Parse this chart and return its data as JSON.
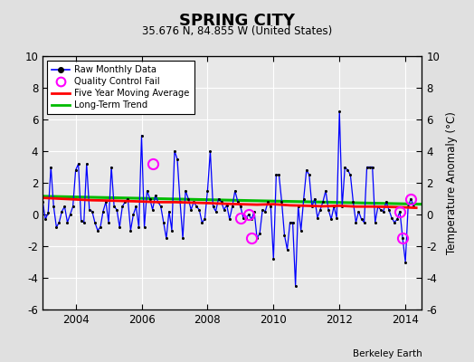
{
  "title": "SPRING CITY",
  "subtitle": "35.676 N, 84.855 W (United States)",
  "ylabel": "Temperature Anomaly (°C)",
  "credit": "Berkeley Earth",
  "xlim": [
    2003.0,
    2014.5
  ],
  "ylim": [
    -6,
    10
  ],
  "yticks": [
    -6,
    -4,
    -2,
    0,
    2,
    4,
    6,
    8,
    10
  ],
  "xticks": [
    2004,
    2006,
    2008,
    2010,
    2012,
    2014
  ],
  "bg_color": "#e0e0e0",
  "plot_bg_color": "#e8e8e8",
  "raw_color": "#0000ff",
  "ma_color": "#ff0000",
  "trend_color": "#00bb00",
  "qc_color": "#ff00ff",
  "raw_data_x": [
    2003.0,
    2003.083,
    2003.167,
    2003.25,
    2003.333,
    2003.417,
    2003.5,
    2003.583,
    2003.667,
    2003.75,
    2003.833,
    2003.917,
    2004.0,
    2004.083,
    2004.167,
    2004.25,
    2004.333,
    2004.417,
    2004.5,
    2004.583,
    2004.667,
    2004.75,
    2004.833,
    2004.917,
    2005.0,
    2005.083,
    2005.167,
    2005.25,
    2005.333,
    2005.417,
    2005.5,
    2005.583,
    2005.667,
    2005.75,
    2005.833,
    2005.917,
    2006.0,
    2006.083,
    2006.167,
    2006.25,
    2006.333,
    2006.417,
    2006.5,
    2006.583,
    2006.667,
    2006.75,
    2006.833,
    2006.917,
    2007.0,
    2007.083,
    2007.167,
    2007.25,
    2007.333,
    2007.417,
    2007.5,
    2007.583,
    2007.667,
    2007.75,
    2007.833,
    2007.917,
    2008.0,
    2008.083,
    2008.167,
    2008.25,
    2008.333,
    2008.417,
    2008.5,
    2008.583,
    2008.667,
    2008.75,
    2008.833,
    2008.917,
    2009.0,
    2009.083,
    2009.167,
    2009.25,
    2009.333,
    2009.417,
    2009.5,
    2009.583,
    2009.667,
    2009.75,
    2009.833,
    2009.917,
    2010.0,
    2010.083,
    2010.167,
    2010.25,
    2010.333,
    2010.417,
    2010.5,
    2010.583,
    2010.667,
    2010.75,
    2010.833,
    2010.917,
    2011.0,
    2011.083,
    2011.167,
    2011.25,
    2011.333,
    2011.417,
    2011.5,
    2011.583,
    2011.667,
    2011.75,
    2011.833,
    2011.917,
    2012.0,
    2012.083,
    2012.167,
    2012.25,
    2012.333,
    2012.417,
    2012.5,
    2012.583,
    2012.667,
    2012.75,
    2012.833,
    2012.917,
    2013.0,
    2013.083,
    2013.167,
    2013.25,
    2013.333,
    2013.417,
    2013.5,
    2013.583,
    2013.667,
    2013.75,
    2013.833,
    2013.917,
    2014.0,
    2014.083,
    2014.167,
    2014.25
  ],
  "raw_data_y": [
    0.8,
    -0.3,
    0.1,
    3.0,
    0.5,
    -0.8,
    -0.5,
    0.2,
    0.5,
    -0.5,
    0.0,
    0.5,
    2.8,
    3.2,
    -0.4,
    -0.5,
    3.2,
    0.3,
    0.2,
    -0.5,
    -1.0,
    -0.8,
    0.2,
    0.8,
    -0.5,
    3.0,
    0.5,
    0.3,
    -0.8,
    0.5,
    0.8,
    1.0,
    -1.0,
    0.0,
    0.5,
    -0.8,
    5.0,
    -0.8,
    1.5,
    1.0,
    0.3,
    1.2,
    0.8,
    0.5,
    -0.5,
    -1.5,
    0.2,
    -1.0,
    4.0,
    3.5,
    0.8,
    -1.5,
    1.5,
    1.0,
    0.3,
    0.8,
    0.5,
    0.3,
    -0.5,
    -0.3,
    1.5,
    4.0,
    0.5,
    0.2,
    1.0,
    0.8,
    0.3,
    0.6,
    -0.3,
    0.5,
    1.5,
    0.8,
    0.5,
    -0.2,
    -0.2,
    0.0,
    -0.3,
    0.2,
    -1.5,
    -1.2,
    0.3,
    0.2,
    0.8,
    0.5,
    -2.8,
    2.5,
    2.5,
    0.8,
    -1.3,
    -2.2,
    -0.5,
    -0.5,
    -4.5,
    0.5,
    -1.0,
    1.0,
    2.8,
    2.5,
    0.5,
    1.0,
    -0.2,
    0.3,
    0.8,
    1.5,
    0.3,
    -0.3,
    0.5,
    -0.2,
    6.5,
    0.5,
    3.0,
    2.8,
    2.5,
    0.8,
    -0.5,
    0.2,
    -0.3,
    -0.5,
    3.0,
    3.0,
    3.0,
    -0.5,
    0.5,
    0.3,
    0.2,
    0.8,
    0.3,
    -0.2,
    -0.5,
    -0.3,
    0.2,
    -1.5,
    -3.0,
    0.5,
    1.0,
    0.5
  ],
  "qc_fail_x": [
    2006.333,
    2009.0,
    2009.25,
    2009.333,
    2013.833,
    2013.917,
    2014.167
  ],
  "qc_fail_y": [
    3.2,
    -0.2,
    0.0,
    -1.5,
    0.2,
    -1.5,
    1.0
  ],
  "moving_avg_x": [
    2003.0,
    2003.5,
    2004.0,
    2004.5,
    2005.0,
    2005.5,
    2006.0,
    2006.5,
    2007.0,
    2007.5,
    2008.0,
    2008.5,
    2009.0,
    2009.5,
    2010.0,
    2010.5,
    2011.0,
    2011.5,
    2012.0,
    2012.5,
    2013.0,
    2013.5,
    2014.0,
    2014.33
  ],
  "moving_avg_y": [
    1.05,
    1.0,
    0.95,
    0.9,
    0.88,
    0.85,
    0.82,
    0.78,
    0.78,
    0.75,
    0.72,
    0.68,
    0.65,
    0.62,
    0.65,
    0.58,
    0.55,
    0.52,
    0.55,
    0.5,
    0.5,
    0.48,
    0.45,
    0.42
  ],
  "trend_x": [
    2003.0,
    2014.5
  ],
  "trend_y": [
    1.15,
    0.65
  ]
}
